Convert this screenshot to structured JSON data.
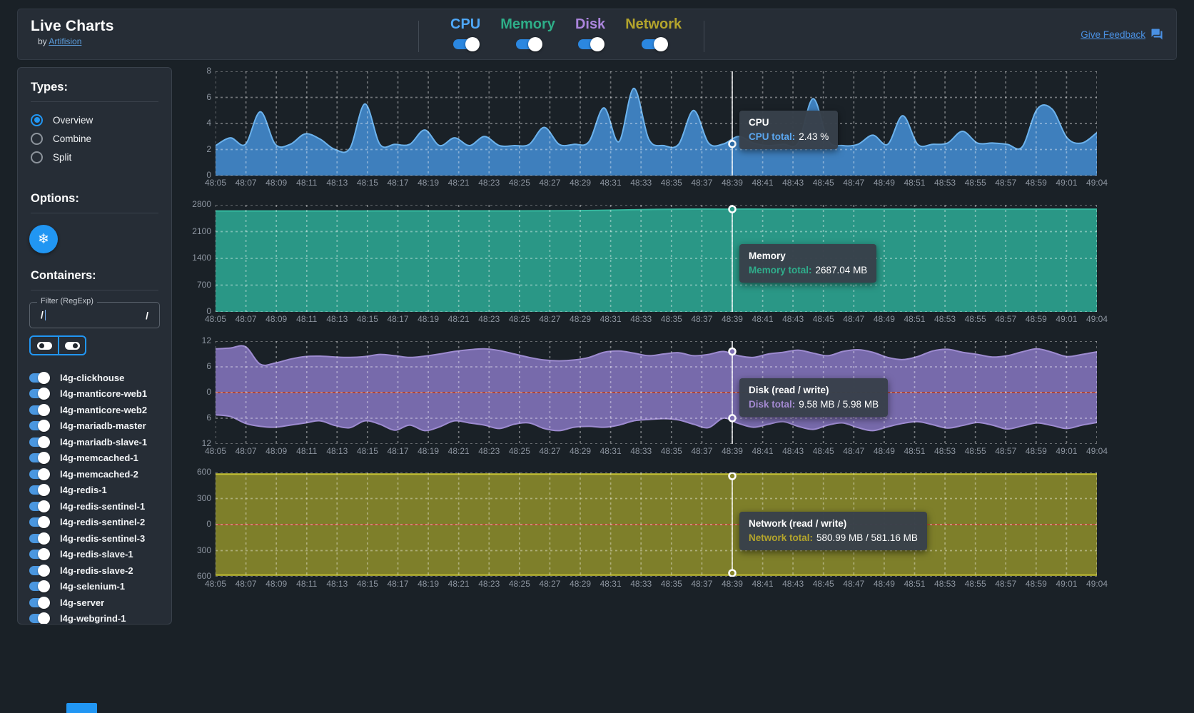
{
  "header": {
    "title": "Live Charts",
    "byline_prefix": "by",
    "byline_link": "Artifision",
    "feedback_label": "Give Feedback",
    "metric_toggles": [
      {
        "label": "CPU",
        "color": "#4fa8f8",
        "enabled": true
      },
      {
        "label": "Memory",
        "color": "#2eae88",
        "enabled": true
      },
      {
        "label": "Disk",
        "color": "#ab85dc",
        "enabled": true
      },
      {
        "label": "Network",
        "color": "#b3a42c",
        "enabled": true
      }
    ]
  },
  "sidebar": {
    "types_heading": "Types:",
    "type_options": [
      {
        "label": "Overview",
        "selected": true
      },
      {
        "label": "Combine",
        "selected": false
      },
      {
        "label": "Split",
        "selected": false
      }
    ],
    "options_heading": "Options:",
    "freeze_button_icon": "snowflake-icon",
    "containers_heading": "Containers:",
    "filter": {
      "label": "Filter (RegExp)",
      "value_left": "/",
      "value_right": "/"
    },
    "bulk_toggle_buttons": [
      {
        "name": "toggle-all-off",
        "state": "off"
      },
      {
        "name": "toggle-all-on",
        "state": "on"
      }
    ],
    "containers": [
      {
        "label": "l4g-clickhouse",
        "enabled": true
      },
      {
        "label": "l4g-manticore-web1",
        "enabled": true
      },
      {
        "label": "l4g-manticore-web2",
        "enabled": true
      },
      {
        "label": "l4g-mariadb-master",
        "enabled": true
      },
      {
        "label": "l4g-mariadb-slave-1",
        "enabled": true
      },
      {
        "label": "l4g-memcached-1",
        "enabled": true
      },
      {
        "label": "l4g-memcached-2",
        "enabled": true
      },
      {
        "label": "l4g-redis-1",
        "enabled": true
      },
      {
        "label": "l4g-redis-sentinel-1",
        "enabled": true
      },
      {
        "label": "l4g-redis-sentinel-2",
        "enabled": true
      },
      {
        "label": "l4g-redis-sentinel-3",
        "enabled": true
      },
      {
        "label": "l4g-redis-slave-1",
        "enabled": true
      },
      {
        "label": "l4g-redis-slave-2",
        "enabled": true
      },
      {
        "label": "l4g-selenium-1",
        "enabled": true
      },
      {
        "label": "l4g-server",
        "enabled": true
      },
      {
        "label": "l4g-webgrind-1",
        "enabled": true
      }
    ]
  },
  "charts": {
    "x_labels": [
      "48:05",
      "48:07",
      "48:09",
      "48:11",
      "48:13",
      "48:15",
      "48:17",
      "48:19",
      "48:21",
      "48:23",
      "48:25",
      "48:27",
      "48:29",
      "48:31",
      "48:33",
      "48:35",
      "48:37",
      "48:39",
      "48:41",
      "48:43",
      "48:45",
      "48:47",
      "48:49",
      "48:51",
      "48:53",
      "48:55",
      "48:57",
      "48:59",
      "49:01",
      "49:04"
    ],
    "hover_time": "48:39"
  },
  "chart_data": [
    {
      "id": "cpu",
      "type": "area",
      "title": "CPU",
      "ymax": 8,
      "yticks": [
        "8",
        "6",
        "4",
        "2",
        "0"
      ],
      "fill": "#3f83c4",
      "line": "#6cb2ec",
      "marker_fill": "#2f6da8",
      "series": [
        {
          "name": "CPU total",
          "values": [
            2.3,
            2.9,
            2.4,
            4.9,
            2.4,
            2.4,
            3.2,
            2.8,
            2.0,
            2.1,
            5.5,
            2.4,
            2.4,
            2.4,
            3.5,
            2.3,
            2.9,
            2.3,
            3.0,
            2.3,
            2.3,
            2.4,
            3.7,
            2.4,
            2.4,
            2.6,
            5.2,
            2.6,
            6.7,
            2.8,
            2.3,
            2.4,
            5.0,
            2.5,
            2.43,
            3.0,
            2.5,
            2.3,
            2.4,
            2.5,
            5.9,
            2.7,
            2.3,
            2.4,
            3.1,
            2.4,
            4.6,
            2.4,
            2.4,
            2.5,
            3.4,
            2.5,
            2.5,
            2.4,
            2.2,
            5.1,
            5.1,
            2.9,
            2.5,
            3.3
          ]
        }
      ],
      "hover_values": [
        2.43
      ],
      "tooltip": {
        "title": "CPU",
        "label": "CPU total:",
        "value": "2.43 %",
        "label_color": "#5ba7f0"
      }
    },
    {
      "id": "memory",
      "type": "area",
      "title": "Memory",
      "ymax": 2800,
      "yticks": [
        "2800",
        "2100",
        "1400",
        "700",
        "0"
      ],
      "fill": "#2b9c8a",
      "line": "#35b89e",
      "marker_fill": "#2b9c8a",
      "series": [
        {
          "name": "Memory total",
          "values": [
            2638,
            2639,
            2640,
            2640,
            2641,
            2642,
            2642,
            2643,
            2650,
            2672,
            2686,
            2687,
            2687,
            2687,
            2687,
            2687,
            2687,
            2687,
            2687,
            2687
          ]
        }
      ],
      "hover_values": [
        2687.04
      ],
      "tooltip": {
        "title": "Memory",
        "label": "Memory total:",
        "value": "2687.04 MB",
        "label_color": "#2fae8c"
      }
    },
    {
      "id": "disk",
      "type": "mirror",
      "title": "Disk (read / write)",
      "ymax": 12,
      "yticks": [
        "12",
        "6",
        "0",
        "6",
        "12"
      ],
      "fill": "#7f70b6",
      "line": "#a violet",
      "line_read": "#9d8bd0",
      "line_write": "#9d8bd0",
      "zero_line": "#a8453f",
      "marker_fill": "#7f70b6",
      "series": [
        {
          "name": "read",
          "values": [
            10.2,
            10.4,
            10.7,
            6.6,
            6.9,
            7.8,
            8.4,
            8.5,
            8.3,
            8.2,
            8.4,
            8.9,
            8.6,
            8.2,
            8.5,
            9.0,
            9.6,
            10.0,
            10.2,
            9.8,
            9.0,
            8.2,
            7.6,
            7.4,
            7.6,
            8.2,
            9.4,
            9.7,
            9.2,
            8.6,
            9.0,
            9.3,
            8.6,
            8.9,
            9.58,
            8.6,
            8.2,
            9.0,
            9.4,
            9.9,
            9.2,
            8.6,
            9.6,
            10.0,
            9.4,
            8.2,
            7.7,
            8.4,
            9.7,
            10.1,
            9.4,
            8.9,
            8.3,
            8.6,
            9.5,
            10.2,
            9.4,
            8.4,
            8.9,
            9.5
          ]
        },
        {
          "name": "write",
          "values": [
            5.2,
            5.6,
            7.2,
            7.9,
            8.1,
            7.6,
            7.1,
            6.6,
            7.7,
            8.2,
            6.6,
            7.4,
            8.8,
            7.6,
            8.9,
            8.0,
            6.6,
            7.1,
            7.6,
            8.4,
            7.4,
            7.1,
            8.4,
            8.9,
            8.1,
            7.9,
            8.1,
            7.6,
            6.6,
            6.3,
            6.1,
            6.4,
            7.4,
            8.2,
            5.98,
            7.2,
            8.1,
            7.4,
            6.8,
            7.9,
            8.6,
            7.6,
            7.1,
            8.2,
            8.9,
            8.0,
            7.2,
            6.8,
            7.5,
            8.3,
            7.7,
            7.0,
            7.6,
            8.5,
            7.8,
            7.1,
            7.7,
            8.4,
            7.6,
            7.0
          ]
        }
      ],
      "hover_values": [
        9.58,
        5.98
      ],
      "tooltip": {
        "title": "Disk (read / write)",
        "label": "Disk total:",
        "value": "9.58 MB / 5.98 MB",
        "label_color": "#a48ad2"
      }
    },
    {
      "id": "network",
      "type": "mirror",
      "title": "Network (read / write)",
      "ymax": 600,
      "yticks": [
        "600",
        "300",
        "0",
        "300",
        "600"
      ],
      "fill": "#87862b",
      "line_read": "#c6c334",
      "line_write": "#c6c334",
      "zero_line": "#b05331",
      "marker_fill": "#87862b",
      "series": [
        {
          "name": "read",
          "values": [
            581,
            581
          ]
        },
        {
          "name": "write",
          "values": [
            581,
            581
          ]
        }
      ],
      "hover_values": [
        580.99,
        581.16
      ],
      "tooltip": {
        "title": "Network (read / write)",
        "label": "Network total:",
        "value": "580.99 MB / 581.16 MB",
        "label_color": "#b3a42c"
      }
    }
  ]
}
